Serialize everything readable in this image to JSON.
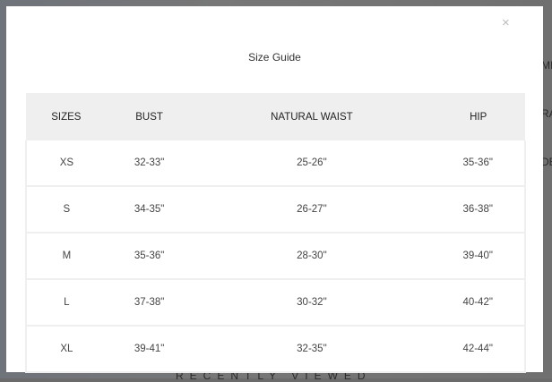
{
  "background": {
    "fragments": [
      "MI",
      "RA",
      "DE"
    ],
    "recently_viewed": "RECENTLY VIEWED"
  },
  "modal": {
    "title": "Size Guide",
    "close_label": "×",
    "table": {
      "headers": [
        "SIZES",
        "BUST",
        "NATURAL WAIST",
        "HIP"
      ],
      "rows": [
        [
          "XS",
          "32-33\"",
          "25-26\"",
          "35-36\""
        ],
        [
          "S",
          "34-35\"",
          "26-27\"",
          "36-38\""
        ],
        [
          "M",
          "35-36\"",
          "28-30\"",
          "39-40\""
        ],
        [
          "L",
          "37-38\"",
          "30-32\"",
          "40-42\""
        ],
        [
          "XL",
          "39-41\"",
          "32-35\"",
          "42-44\""
        ]
      ]
    }
  }
}
